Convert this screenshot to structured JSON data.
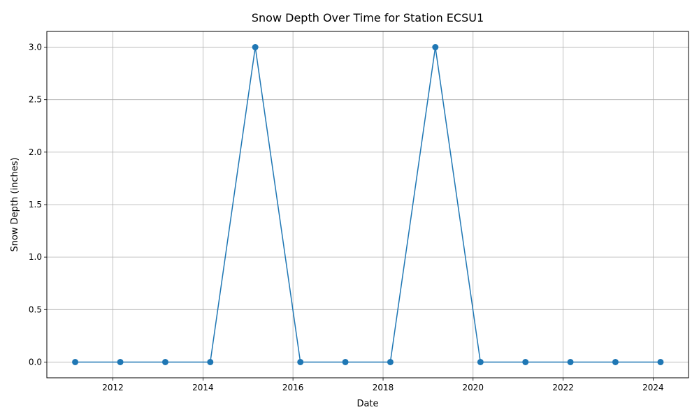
{
  "chart_data": {
    "type": "line",
    "title": "Snow Depth Over Time for Station ECSU1",
    "xlabel": "Date",
    "ylabel": "Snow Depth (inches)",
    "x": [
      "2011-03-01",
      "2012-03-01",
      "2013-03-01",
      "2014-03-01",
      "2015-03-01",
      "2016-03-01",
      "2017-03-01",
      "2018-03-01",
      "2019-03-01",
      "2020-03-01",
      "2021-03-01",
      "2022-03-01",
      "2023-03-01",
      "2024-03-01"
    ],
    "series": [
      {
        "values": [
          0,
          0,
          0,
          0,
          3,
          0,
          0,
          0,
          3,
          0,
          0,
          0,
          0,
          0
        ]
      }
    ],
    "xlim": [
      "2010-07-14",
      "2024-10-14"
    ],
    "ylim": [
      -0.15,
      3.15
    ],
    "xticks": [
      "2012",
      "2014",
      "2016",
      "2018",
      "2020",
      "2022",
      "2024"
    ],
    "yticks": [
      "0.0",
      "0.5",
      "1.0",
      "1.5",
      "2.0",
      "2.5",
      "3.0"
    ],
    "grid": true,
    "marker": "circle",
    "colors": {
      "series": "#1f77b4",
      "grid": "#b0b0b0",
      "axes": "#000000"
    }
  }
}
